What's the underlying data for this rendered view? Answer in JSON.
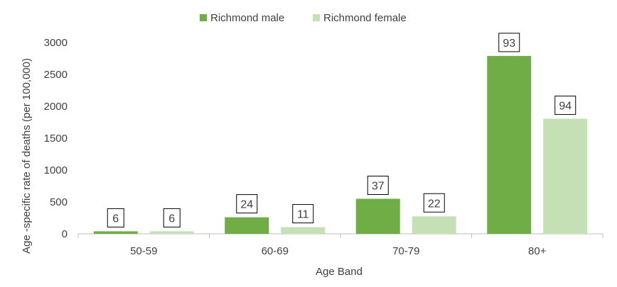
{
  "chart_data": {
    "type": "bar",
    "categories": [
      "50-59",
      "60-69",
      "70-79",
      "80+"
    ],
    "series": [
      {
        "name": "Richmond male",
        "color": "#70ad47",
        "values": [
          40,
          260,
          550,
          2790
        ],
        "data_labels": [
          "6",
          "24",
          "37",
          "93"
        ]
      },
      {
        "name": "Richmond female",
        "color": "#c5e0b4",
        "values": [
          40,
          105,
          275,
          1805
        ],
        "data_labels": [
          "6",
          "11",
          "22",
          "94"
        ]
      }
    ],
    "xlabel": "Age Band",
    "ylabel": "Age -specific rate of deaths (per 100,000)",
    "ylim": [
      0,
      3000
    ],
    "yticks": [
      0,
      500,
      1000,
      1500,
      2000,
      2500,
      3000
    ],
    "grid": false,
    "legend_position": "top-center"
  }
}
